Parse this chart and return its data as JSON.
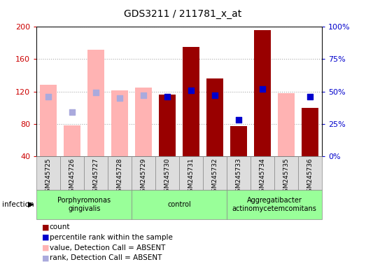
{
  "title": "GDS3211 / 211781_x_at",
  "samples": [
    "GSM245725",
    "GSM245726",
    "GSM245727",
    "GSM245728",
    "GSM245729",
    "GSM245730",
    "GSM245731",
    "GSM245732",
    "GSM245733",
    "GSM245734",
    "GSM245735",
    "GSM245736"
  ],
  "count_values": [
    null,
    null,
    null,
    null,
    null,
    116,
    175,
    136,
    77,
    196,
    null,
    100
  ],
  "count_absent": [
    128,
    78,
    172,
    121,
    125,
    null,
    null,
    null,
    null,
    null,
    118,
    null
  ],
  "percentile_values": [
    null,
    null,
    null,
    null,
    null,
    46,
    51,
    47,
    28,
    52,
    null,
    46
  ],
  "percentile_absent": [
    46,
    34,
    49,
    45,
    47,
    null,
    null,
    null,
    null,
    null,
    null,
    null
  ],
  "groups": [
    {
      "label": "Porphyromonas\ngingivalis",
      "start": 0,
      "end": 3,
      "color": "#99ff99"
    },
    {
      "label": "control",
      "start": 4,
      "end": 7,
      "color": "#99ff99"
    },
    {
      "label": "Aggregatibacter\nactinomycetemcomitans",
      "start": 8,
      "end": 11,
      "color": "#99ff99"
    }
  ],
  "ylim": [
    40,
    200
  ],
  "yticks": [
    40,
    80,
    120,
    160,
    200
  ],
  "y2lim": [
    0,
    100
  ],
  "y2ticks": [
    0,
    25,
    50,
    75,
    100
  ],
  "y2ticklabels": [
    "0%",
    "25%",
    "50%",
    "75%",
    "100%"
  ],
  "bar_color": "#990000",
  "absent_bar_color": "#ffb3b3",
  "dot_color": "#0000cc",
  "absent_dot_color": "#aaaadd",
  "ylabel_color": "#cc0000",
  "y2label_color": "#0000cc",
  "background_color": "#ffffff",
  "plot_bg_color": "#ffffff",
  "bar_width": 0.7,
  "dot_size": 40,
  "xtick_bg": "#dddddd",
  "legend_items": [
    {
      "color": "#990000",
      "label": "count"
    },
    {
      "color": "#0000cc",
      "label": "percentile rank within the sample"
    },
    {
      "color": "#ffb3b3",
      "label": "value, Detection Call = ABSENT"
    },
    {
      "color": "#aaaadd",
      "label": "rank, Detection Call = ABSENT"
    }
  ]
}
